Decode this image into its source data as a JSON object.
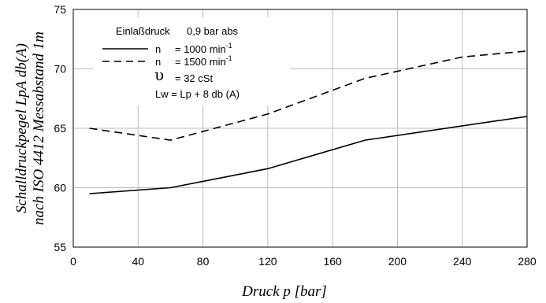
{
  "chart_data": {
    "type": "line",
    "xlabel": "Druck p [bar]",
    "ylabel_line1": "Schalldruckpegel LpA db(A)",
    "ylabel_line2": "nach ISO 4412 Messabstand 1m",
    "xlim": [
      0,
      280
    ],
    "ylim": [
      55,
      75
    ],
    "xticks": [
      0,
      40,
      80,
      120,
      160,
      200,
      240,
      280
    ],
    "yticks": [
      55,
      60,
      65,
      70,
      75
    ],
    "grid": true,
    "legend_position": "top-left",
    "series": [
      {
        "name": "n = 1000 min⁻¹",
        "style": "solid",
        "color": "#000000",
        "x": [
          10,
          60,
          120,
          180,
          280
        ],
        "y": [
          59.5,
          60.0,
          61.6,
          64.0,
          66.0
        ]
      },
      {
        "name": "n = 1500 min⁻¹",
        "style": "dashed",
        "color": "#000000",
        "x": [
          10,
          60,
          120,
          180,
          240,
          280
        ],
        "y": [
          65.0,
          64.0,
          66.2,
          69.2,
          71.0,
          71.5
        ]
      }
    ]
  },
  "legend": {
    "title_label": "Einlaßdruck",
    "title_value": "0,9 bar abs",
    "line1_prefix": "n",
    "line1_value": "= 1000 min",
    "line1_exp": "-1",
    "line2_prefix": "n",
    "line2_value": "= 1500 min",
    "line2_exp": "-1",
    "viscosity_symbol": "υ",
    "viscosity_value": "= 32 cSt",
    "formula": "Lw = Lp + 8 db (A)"
  }
}
